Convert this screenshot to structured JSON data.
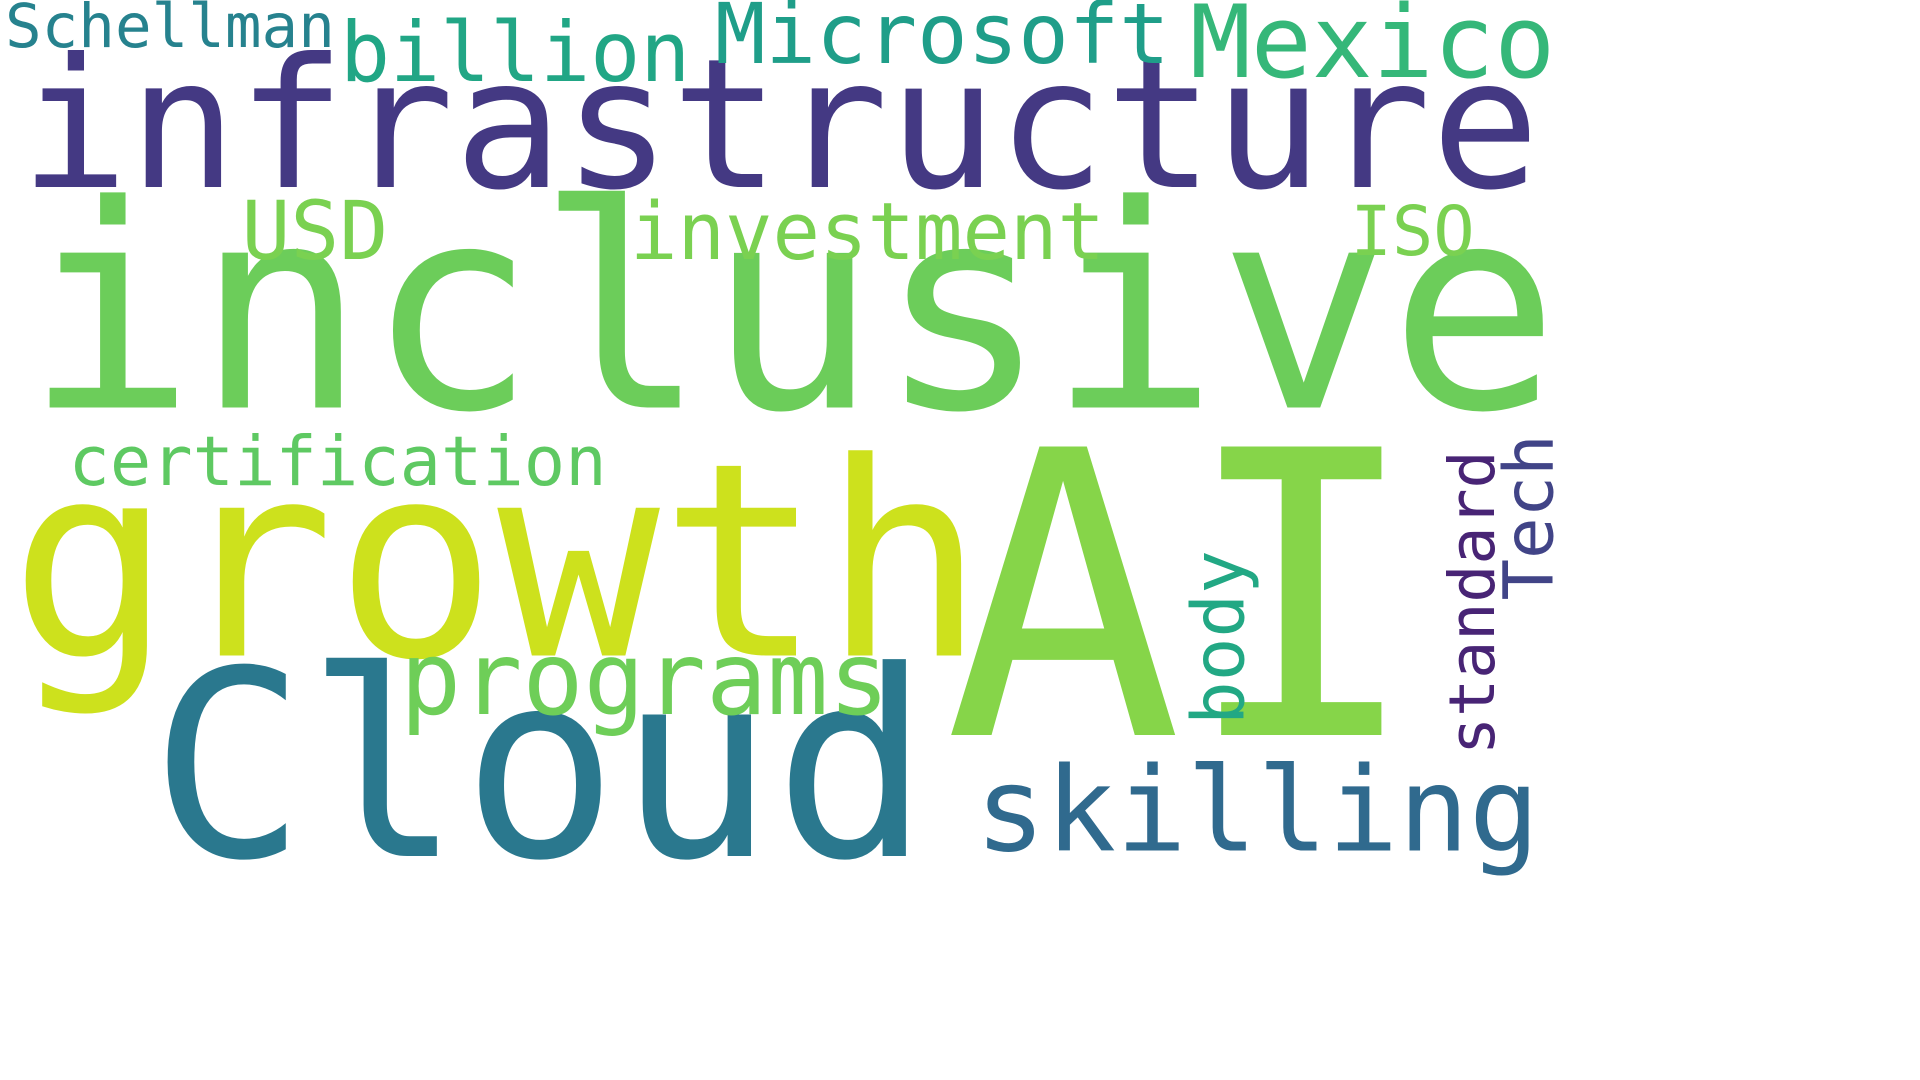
{
  "words": [
    {
      "text": "inclusive",
      "weight": 1.0,
      "color": "#6ccd5a",
      "orientation": "horizontal"
    },
    {
      "text": "AI",
      "weight": 0.95,
      "color": "#86d549",
      "orientation": "horizontal"
    },
    {
      "text": "growth",
      "weight": 0.8,
      "color": "#cde11d",
      "orientation": "horizontal"
    },
    {
      "text": "Cloud",
      "weight": 0.75,
      "color": "#2a788e",
      "orientation": "horizontal"
    },
    {
      "text": "infrastructure",
      "weight": 0.55,
      "color": "#443983",
      "orientation": "horizontal"
    },
    {
      "text": "skilling",
      "weight": 0.3,
      "color": "#306a8e",
      "orientation": "horizontal"
    },
    {
      "text": "programs",
      "weight": 0.28,
      "color": "#6ece58",
      "orientation": "horizontal"
    },
    {
      "text": "Mexico",
      "weight": 0.25,
      "color": "#35b779",
      "orientation": "horizontal"
    },
    {
      "text": "billion",
      "weight": 0.24,
      "color": "#21a685",
      "orientation": "horizontal"
    },
    {
      "text": "Microsoft",
      "weight": 0.23,
      "color": "#1f9e89",
      "orientation": "horizontal"
    },
    {
      "text": "standard",
      "weight": 0.2,
      "color": "#482475",
      "orientation": "vertical"
    },
    {
      "text": "Tech",
      "weight": 0.2,
      "color": "#414487",
      "orientation": "vertical"
    },
    {
      "text": "investment",
      "weight": 0.2,
      "color": "#7ad151",
      "orientation": "horizontal"
    },
    {
      "text": "certification",
      "weight": 0.19,
      "color": "#5ec962",
      "orientation": "horizontal"
    },
    {
      "text": "body",
      "weight": 0.18,
      "color": "#22a884",
      "orientation": "vertical"
    },
    {
      "text": "USD",
      "weight": 0.18,
      "color": "#7ad151",
      "orientation": "horizontal"
    },
    {
      "text": "ISO",
      "weight": 0.17,
      "color": "#7ad151",
      "orientation": "horizontal"
    },
    {
      "text": "Schellman",
      "weight": 0.15,
      "color": "#26828e",
      "orientation": "horizontal"
    }
  ]
}
